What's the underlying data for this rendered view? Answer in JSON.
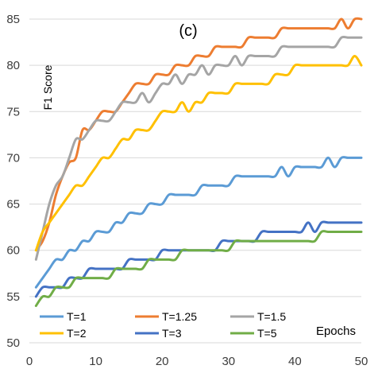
{
  "chart_data": {
    "type": "line",
    "title": "(c)",
    "xlabel": "Epochs",
    "ylabel": "F1 Score",
    "xlim": [
      0,
      50
    ],
    "ylim": [
      50,
      85
    ],
    "xticks": [
      0,
      10,
      20,
      30,
      40,
      50
    ],
    "yticks": [
      50,
      55,
      60,
      65,
      70,
      75,
      80,
      85
    ],
    "grid": "horizontal",
    "legend_position": "bottom",
    "x": [
      1,
      2,
      3,
      4,
      5,
      6,
      7,
      8,
      9,
      10,
      11,
      12,
      13,
      14,
      15,
      16,
      17,
      18,
      19,
      20,
      21,
      22,
      23,
      24,
      25,
      26,
      27,
      28,
      29,
      30,
      31,
      32,
      33,
      34,
      35,
      36,
      37,
      38,
      39,
      40,
      41,
      42,
      43,
      44,
      45,
      46,
      47,
      48,
      49,
      50
    ],
    "series": [
      {
        "name": "T=1",
        "color": "#5b9bd5",
        "values": [
          56,
          57,
          58,
          59,
          59,
          60,
          60,
          61,
          61,
          62,
          62,
          62,
          63,
          63,
          64,
          64,
          64,
          65,
          65,
          65,
          66,
          66,
          66,
          66,
          66,
          67,
          67,
          67,
          67,
          67,
          68,
          68,
          68,
          68,
          68,
          68,
          68,
          69,
          68,
          69,
          69,
          69,
          69,
          69,
          70,
          69,
          70,
          70,
          70,
          70
        ]
      },
      {
        "name": "T=1.25",
        "color": "#ed7d31",
        "values": [
          60,
          61,
          63,
          66,
          68,
          69.5,
          70,
          73,
          73,
          74,
          75,
          75,
          75,
          76,
          77,
          78,
          78,
          78,
          79,
          79,
          79,
          80,
          80,
          80,
          81,
          81,
          81,
          82,
          82,
          82,
          82,
          82,
          83,
          83,
          83,
          83,
          83,
          84,
          84,
          84,
          84,
          84,
          84,
          84,
          84,
          84,
          85,
          84,
          85,
          85
        ]
      },
      {
        "name": "T=1.5",
        "color": "#a5a5a5",
        "values": [
          59,
          62,
          65,
          67,
          68,
          70,
          72,
          72,
          73,
          74,
          74,
          74,
          75,
          76,
          76,
          76,
          77,
          76,
          77,
          78,
          78,
          79,
          78,
          79,
          79,
          80,
          79,
          80,
          80,
          80,
          81,
          80,
          81,
          81,
          81,
          81,
          81,
          82,
          82,
          82,
          82,
          82,
          82,
          82,
          82,
          82,
          83,
          83,
          83,
          83
        ]
      },
      {
        "name": "T=2",
        "color": "#ffc000",
        "values": [
          60,
          62,
          63,
          64,
          65,
          66,
          67,
          67,
          68,
          69,
          70,
          70,
          71,
          72,
          72,
          73,
          73,
          73,
          74,
          75,
          75,
          75,
          76,
          75,
          76,
          76,
          77,
          77,
          77,
          77,
          78,
          78,
          78,
          78,
          78,
          78,
          79,
          79,
          79,
          80,
          80,
          80,
          80,
          80,
          80,
          80,
          80,
          80,
          81,
          80
        ]
      },
      {
        "name": "T=3",
        "color": "#4472c4",
        "values": [
          55,
          56,
          56,
          56,
          56,
          57,
          57,
          57,
          58,
          58,
          58,
          58,
          58,
          58,
          59,
          59,
          59,
          59,
          59,
          60,
          60,
          60,
          60,
          60,
          60,
          60,
          60,
          60,
          61,
          61,
          61,
          61,
          61,
          61,
          62,
          62,
          62,
          62,
          62,
          62,
          62,
          63,
          62,
          63,
          63,
          63,
          63,
          63,
          63,
          63
        ]
      },
      {
        "name": "T=5",
        "color": "#70ad47",
        "values": [
          54,
          55,
          55,
          56,
          56,
          56,
          57,
          57,
          57,
          57,
          57,
          57,
          58,
          58,
          58,
          58,
          58,
          59,
          59,
          59,
          59,
          59,
          60,
          60,
          60,
          60,
          60,
          60,
          60,
          60,
          61,
          61,
          61,
          61,
          61,
          61,
          61,
          61,
          61,
          61,
          61,
          61,
          61,
          62,
          62,
          62,
          62,
          62,
          62,
          62
        ]
      }
    ]
  }
}
